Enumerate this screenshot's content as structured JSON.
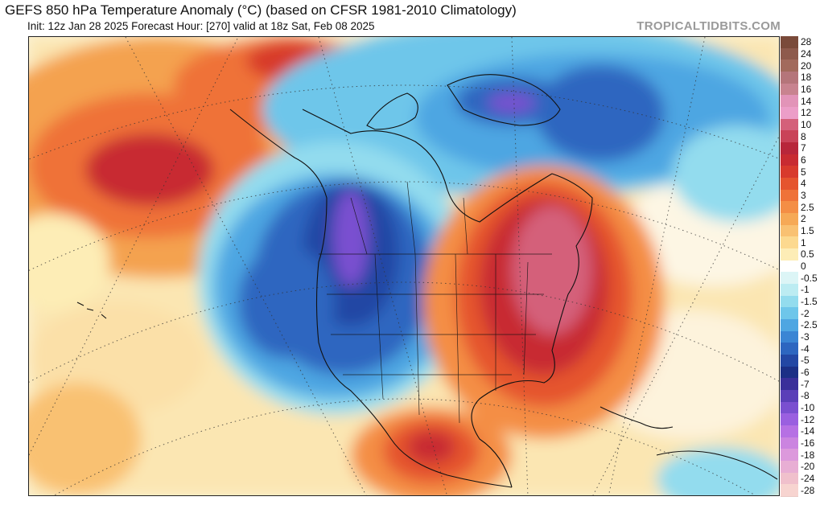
{
  "header": {
    "title": "GEFS 850 hPa Temperature Anomaly (°C) (based on CFSR 1981-2010 Climatology)",
    "subtitle": "Init: 12z Jan 28 2025   Forecast Hour: [270]   valid at 18z Sat, Feb 08 2025",
    "brand": "TROPICALTIDBITS.COM"
  },
  "colorbar": {
    "levels": [
      {
        "label": "28",
        "color": "#7a4a3a"
      },
      {
        "label": "24",
        "color": "#8e5a4c"
      },
      {
        "label": "20",
        "color": "#a26a5c"
      },
      {
        "label": "18",
        "color": "#b5757a"
      },
      {
        "label": "16",
        "color": "#c8838f"
      },
      {
        "label": "14",
        "color": "#e294b8"
      },
      {
        "label": "12",
        "color": "#ec9ec8"
      },
      {
        "label": "10",
        "color": "#d4607a"
      },
      {
        "label": "8",
        "color": "#c94358"
      },
      {
        "label": "7",
        "color": "#b8263a"
      },
      {
        "label": "6",
        "color": "#c82b31"
      },
      {
        "label": "5",
        "color": "#d83a2c"
      },
      {
        "label": "4",
        "color": "#e5542e"
      },
      {
        "label": "3",
        "color": "#ef7238"
      },
      {
        "label": "2.5",
        "color": "#f48e45"
      },
      {
        "label": "2",
        "color": "#f6a956"
      },
      {
        "label": "1.5",
        "color": "#f9c172"
      },
      {
        "label": "1",
        "color": "#fcd98f"
      },
      {
        "label": "0.5",
        "color": "#fdedb6"
      },
      {
        "label": "0",
        "color": "#ffffff"
      },
      {
        "label": "-0.5",
        "color": "#dcf5f6"
      },
      {
        "label": "-1",
        "color": "#bcecf2"
      },
      {
        "label": "-1.5",
        "color": "#93dcee"
      },
      {
        "label": "-2",
        "color": "#6ec6ea"
      },
      {
        "label": "-2.5",
        "color": "#4ea6e2"
      },
      {
        "label": "-3",
        "color": "#3a85d4"
      },
      {
        "label": "-4",
        "color": "#2d66c0"
      },
      {
        "label": "-5",
        "color": "#2347a4"
      },
      {
        "label": "-6",
        "color": "#1b2f86"
      },
      {
        "label": "-7",
        "color": "#3a2f9a"
      },
      {
        "label": "-8",
        "color": "#5a3fb8"
      },
      {
        "label": "-10",
        "color": "#7a4fd0"
      },
      {
        "label": "-12",
        "color": "#9a5fe0"
      },
      {
        "label": "-14",
        "color": "#b670e4"
      },
      {
        "label": "-16",
        "color": "#cb84e0"
      },
      {
        "label": "-18",
        "color": "#dc99dc"
      },
      {
        "label": "-20",
        "color": "#e8aed4"
      },
      {
        "label": "-24",
        "color": "#f0c0cc"
      },
      {
        "label": "-28",
        "color": "#f7d4d0"
      }
    ]
  },
  "map": {
    "colors": {
      "ocean_warm": "#fbe6b2",
      "warm_orange": "#f4a24f",
      "warm_red": "#d83a2c",
      "deep_red": "#b8263a",
      "pink": "#d4607a",
      "cold_light": "#93dcee",
      "cold_mid": "#3a85d4",
      "cold_deep": "#1b2f86",
      "purple": "#7a4fd0"
    }
  }
}
